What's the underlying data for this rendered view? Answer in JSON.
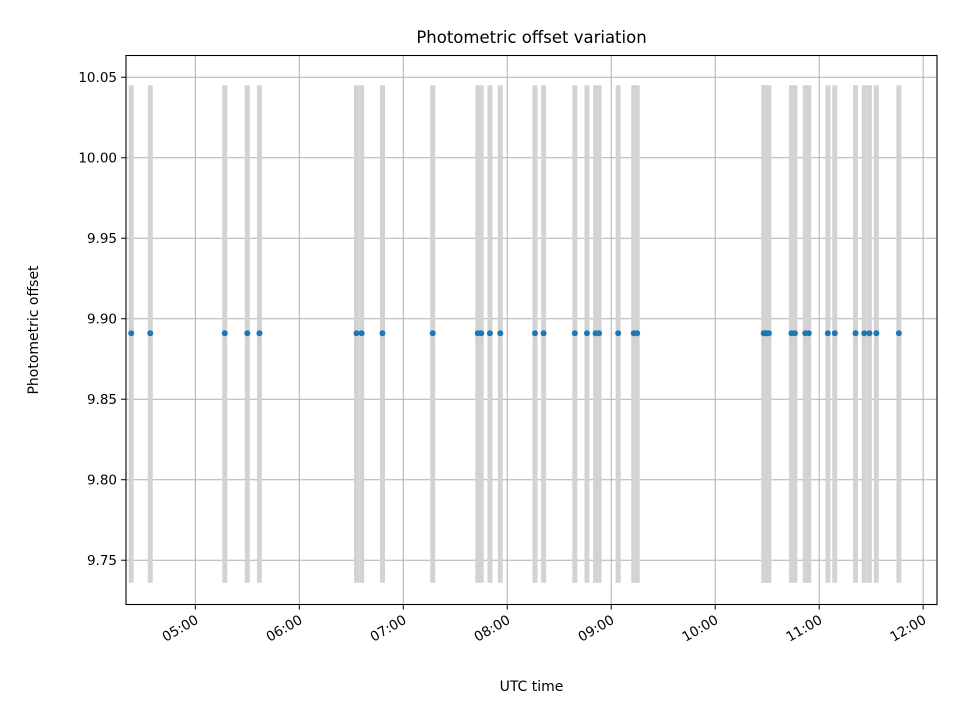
{
  "chart_data": {
    "type": "scatter",
    "title": "Photometric offset variation",
    "xlabel": "UTC time",
    "ylabel": "Photometric offset",
    "xlim": [
      "04:20",
      "12:08"
    ],
    "ylim": [
      9.7225,
      10.0635
    ],
    "grid": true,
    "x_ticks": [
      "05:00",
      "06:00",
      "07:00",
      "08:00",
      "09:00",
      "10:00",
      "11:00",
      "12:00"
    ],
    "y_ticks": [
      "9.75",
      "9.80",
      "9.85",
      "9.90",
      "9.95",
      "10.00",
      "10.05"
    ],
    "series": [
      {
        "values": [
          {
            "x": "04:23",
            "y": 9.891
          },
          {
            "x": "04:34",
            "y": 9.891
          },
          {
            "x": "05:17",
            "y": 9.891
          },
          {
            "x": "05:30",
            "y": 9.891
          },
          {
            "x": "05:37",
            "y": 9.891
          },
          {
            "x": "06:33",
            "y": 9.891
          },
          {
            "x": "06:36",
            "y": 9.891
          },
          {
            "x": "06:48",
            "y": 9.891
          },
          {
            "x": "07:17",
            "y": 9.891
          },
          {
            "x": "07:43",
            "y": 9.891
          },
          {
            "x": "07:45",
            "y": 9.891
          },
          {
            "x": "07:50",
            "y": 9.891
          },
          {
            "x": "07:56",
            "y": 9.891
          },
          {
            "x": "08:16",
            "y": 9.891
          },
          {
            "x": "08:21",
            "y": 9.891
          },
          {
            "x": "08:39",
            "y": 9.891
          },
          {
            "x": "08:46",
            "y": 9.891
          },
          {
            "x": "08:51",
            "y": 9.891
          },
          {
            "x": "08:53",
            "y": 9.891
          },
          {
            "x": "09:04",
            "y": 9.891
          },
          {
            "x": "09:13",
            "y": 9.891
          },
          {
            "x": "09:15",
            "y": 9.891
          },
          {
            "x": "10:28",
            "y": 9.891
          },
          {
            "x": "10:29",
            "y": 9.891
          },
          {
            "x": "10:30",
            "y": 9.891
          },
          {
            "x": "10:31",
            "y": 9.891
          },
          {
            "x": "10:44",
            "y": 9.891
          },
          {
            "x": "10:46",
            "y": 9.891
          },
          {
            "x": "10:52",
            "y": 9.891
          },
          {
            "x": "10:54",
            "y": 9.891
          },
          {
            "x": "11:05",
            "y": 9.891
          },
          {
            "x": "11:09",
            "y": 9.891
          },
          {
            "x": "11:21",
            "y": 9.891
          },
          {
            "x": "11:26",
            "y": 9.891
          },
          {
            "x": "11:29",
            "y": 9.891
          },
          {
            "x": "11:33",
            "y": 9.891
          },
          {
            "x": "11:46",
            "y": 9.891
          }
        ]
      }
    ],
    "error_bar_range": [
      9.736,
      10.045
    ],
    "colors": {
      "points": "#1f77b4",
      "bars": "#d3d3d3",
      "grid": "#b0b0b0",
      "axes": "#000000"
    }
  }
}
